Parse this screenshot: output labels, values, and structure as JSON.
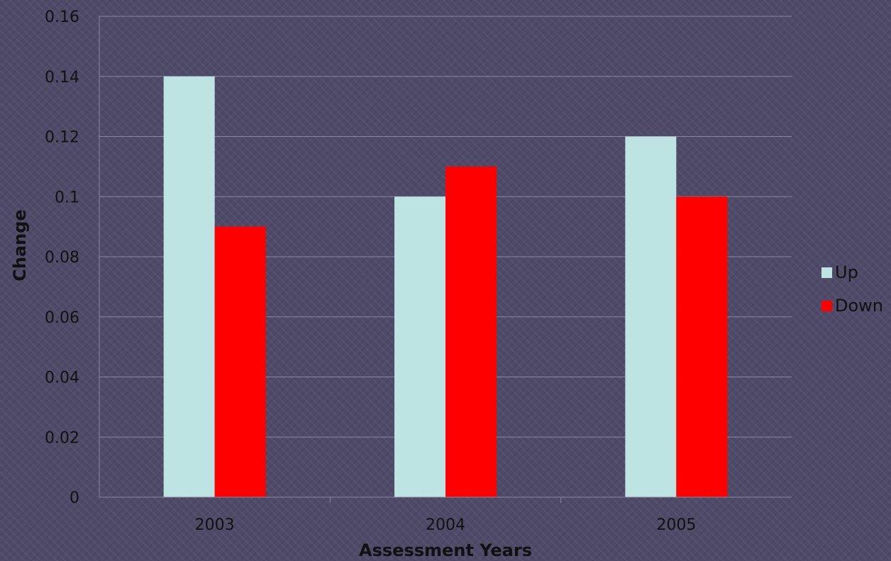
{
  "chart_data": {
    "type": "bar",
    "title": "",
    "xlabel": "Assessment Years",
    "ylabel": "Change",
    "categories": [
      "2003",
      "2004",
      "2005"
    ],
    "series": [
      {
        "name": "Up",
        "color": "#bde3e3",
        "values": [
          0.14,
          0.1,
          0.12
        ]
      },
      {
        "name": "Down",
        "color": "#ff0000",
        "values": [
          0.09,
          0.11,
          0.1
        ]
      }
    ],
    "ylim": [
      0,
      0.16
    ],
    "yticks": [
      "0",
      "0.02",
      "0.04",
      "0.06",
      "0.08",
      "0.1",
      "0.12",
      "0.14",
      "0.16"
    ],
    "grid": true,
    "legend_position": "right"
  }
}
